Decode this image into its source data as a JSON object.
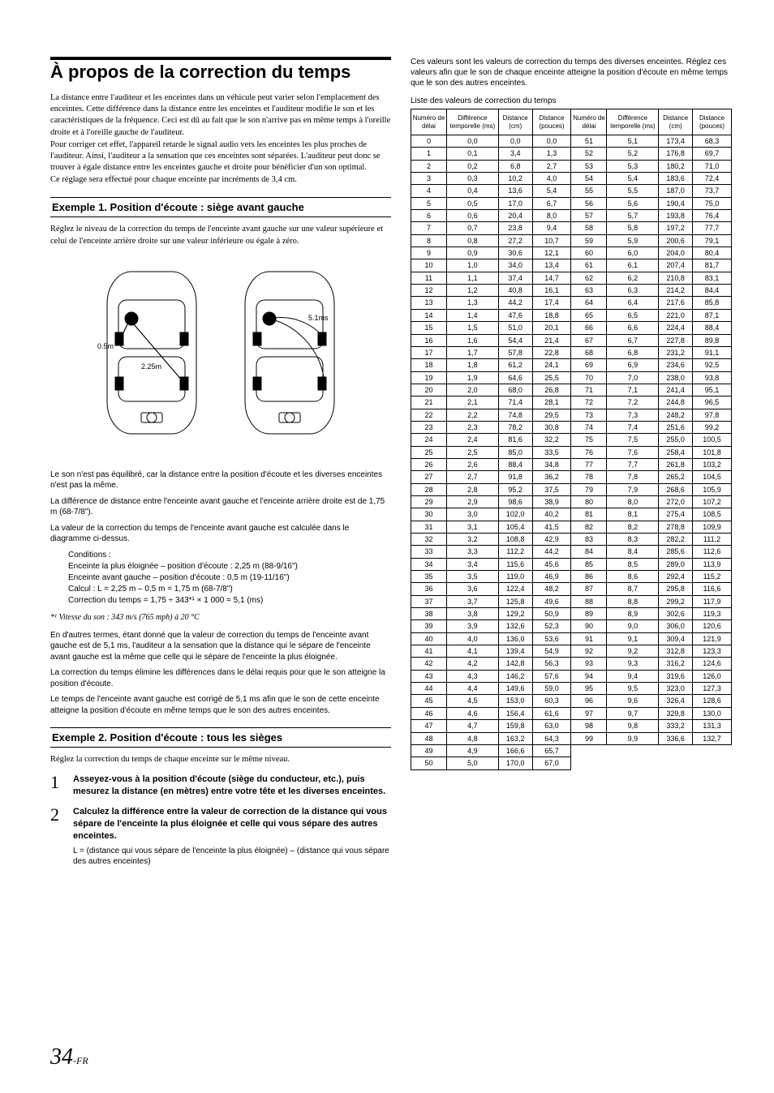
{
  "page": {
    "number": "34",
    "suffix": "-FR"
  },
  "title": "À propos de la correction du temps",
  "intro": [
    "La distance entre l'auditeur et les enceintes dans un véhicule peut varier selon l'emplacement des enceintes. Cette différence dans la distance entre les enceintes et l'auditeur modifie le son et les caractéristiques de la fréquence. Ceci est dû au fait que le son n'arrive pas en même temps à l'oreille droite et à l'oreille gauche de l'auditeur.",
    "Pour corriger cet effet, l'appareil retarde le signal audio vers les enceintes les plus proches de l'auditeur. Ainsi, l'auditeur a la sensation que ces enceintes sont séparées. L'auditeur peut donc se trouver à égale distance entre les enceintes gauche et droite pour bénéficier d'un son optimal.",
    "Ce réglage sera effectué pour chaque enceinte par incréments de 3,4 cm."
  ],
  "example1": {
    "heading": "Exemple 1. Position d'écoute : siège avant gauche",
    "intro": "Réglez le niveau de la correction du temps de l'enceinte avant gauche sur une valeur supérieure et celui de l'enceinte arrière droite sur une valeur inférieure ou égale à zéro.",
    "labels": {
      "d1": "0.5m",
      "d2": "2.25m",
      "t": "5.1ms"
    },
    "p1": "Le son n'est pas équilibré, car la distance entre la position d'écoute et les diverses enceintes n'est pas la même.",
    "p2": "La différence de distance entre l'enceinte avant gauche et l'enceinte arrière droite est de 1,75 m (68-7/8\").",
    "p3": "La valeur de la correction du temps de l'enceinte avant gauche est calculée dans le diagramme ci-dessus.",
    "conditions_label": "Conditions :",
    "conditions": [
      "Enceinte la plus éloignée – position d'écoute : 2,25 m (88-9/16\")",
      "Enceinte avant gauche – position d'écoute : 0,5 m (19-11/16\")",
      "Calcul : L = 2,25 m – 0,5 m = 1,75 m (68-7/8\")",
      "Correction du temps = 1,75 ÷ 343*¹ × 1 000 = 5,1 (ms)"
    ],
    "footnote": "*¹ Vitesse du son : 343 m/s (765 mph) à 20 °C",
    "p4": "En d'autres termes, étant donné que la valeur de correction du temps de l'enceinte avant gauche est de 5,1 ms, l'auditeur a la sensation que la distance qui le sépare de l'enceinte avant gauche est la même que celle qui le sépare de l'enceinte la plus éloignée.",
    "p5": "La correction du temps élimine les différences dans le délai requis pour que le son atteigne la position d'écoute.",
    "p6": "Le temps de l'enceinte avant gauche est corrigé de 5,1 ms afin que le son de cette enceinte atteigne la position d'écoute en même temps que le son des autres enceintes."
  },
  "example2": {
    "heading": "Exemple 2. Position d'écoute : tous les sièges",
    "intro": "Réglez la correction du temps de chaque enceinte sur le même niveau.",
    "steps": [
      {
        "n": "1",
        "text": "Asseyez-vous à la position d'écoute (siège du conducteur, etc.), puis mesurez la distance (en mètres) entre votre tête et les diverses enceintes."
      },
      {
        "n": "2",
        "text": "Calculez la différence entre la valeur de correction de la distance qui vous sépare de l'enceinte la plus éloignée et celle qui vous sépare des autres enceintes.",
        "sub": "L = (distance qui vous sépare de l'enceinte la plus éloignée) – (distance qui vous sépare des autres enceintes)"
      }
    ]
  },
  "right": {
    "intro": "Ces valeurs sont les valeurs de correction du temps des diverses enceintes. Réglez ces valeurs afin que le son de chaque enceinte atteigne la position d'écoute en même temps que le son des autres enceintes.",
    "caption": "Liste des valeurs de correction du temps",
    "headers": [
      "Numéro de délai",
      "Différence temporelle (ms)",
      "Distance (cm)",
      "Distance (pouces)",
      "Numéro de délai",
      "Différence temporelle (ms)",
      "Distance (cm)",
      "Distance (pouces)"
    ],
    "rows": [
      [
        "0",
        "0,0",
        "0,0",
        "0,0",
        "51",
        "5,1",
        "173,4",
        "68,3"
      ],
      [
        "1",
        "0,1",
        "3,4",
        "1,3",
        "52",
        "5,2",
        "176,8",
        "69,7"
      ],
      [
        "2",
        "0,2",
        "6,8",
        "2,7",
        "53",
        "5,3",
        "180,2",
        "71,0"
      ],
      [
        "3",
        "0,3",
        "10,2",
        "4,0",
        "54",
        "5,4",
        "183,6",
        "72,4"
      ],
      [
        "4",
        "0,4",
        "13,6",
        "5,4",
        "55",
        "5,5",
        "187,0",
        "73,7"
      ],
      [
        "5",
        "0,5",
        "17,0",
        "6,7",
        "56",
        "5,6",
        "190,4",
        "75,0"
      ],
      [
        "6",
        "0,6",
        "20,4",
        "8,0",
        "57",
        "5,7",
        "193,8",
        "76,4"
      ],
      [
        "7",
        "0,7",
        "23,8",
        "9,4",
        "58",
        "5,8",
        "197,2",
        "77,7"
      ],
      [
        "8",
        "0,8",
        "27,2",
        "10,7",
        "59",
        "5,9",
        "200,6",
        "79,1"
      ],
      [
        "9",
        "0,9",
        "30,6",
        "12,1",
        "60",
        "6,0",
        "204,0",
        "80,4"
      ],
      [
        "10",
        "1,0",
        "34,0",
        "13,4",
        "61",
        "6,1",
        "207,4",
        "81,7"
      ],
      [
        "11",
        "1,1",
        "37,4",
        "14,7",
        "62",
        "6,2",
        "210,8",
        "83,1"
      ],
      [
        "12",
        "1,2",
        "40,8",
        "16,1",
        "63",
        "6,3",
        "214,2",
        "84,4"
      ],
      [
        "13",
        "1,3",
        "44,2",
        "17,4",
        "64",
        "6,4",
        "217,6",
        "85,8"
      ],
      [
        "14",
        "1,4",
        "47,6",
        "18,8",
        "65",
        "6,5",
        "221,0",
        "87,1"
      ],
      [
        "15",
        "1,5",
        "51,0",
        "20,1",
        "66",
        "6,6",
        "224,4",
        "88,4"
      ],
      [
        "16",
        "1,6",
        "54,4",
        "21,4",
        "67",
        "6,7",
        "227,8",
        "89,8"
      ],
      [
        "17",
        "1,7",
        "57,8",
        "22,8",
        "68",
        "6,8",
        "231,2",
        "91,1"
      ],
      [
        "18",
        "1,8",
        "61,2",
        "24,1",
        "69",
        "6,9",
        "234,6",
        "92,5"
      ],
      [
        "19",
        "1,9",
        "64,6",
        "25,5",
        "70",
        "7,0",
        "238,0",
        "93,8"
      ],
      [
        "20",
        "2,0",
        "68,0",
        "26,8",
        "71",
        "7,1",
        "241,4",
        "95,1"
      ],
      [
        "21",
        "2,1",
        "71,4",
        "28,1",
        "72",
        "7,2",
        "244,8",
        "96,5"
      ],
      [
        "22",
        "2,2",
        "74,8",
        "29,5",
        "73",
        "7,3",
        "248,2",
        "97,8"
      ],
      [
        "23",
        "2,3",
        "78,2",
        "30,8",
        "74",
        "7,4",
        "251,6",
        "99,2"
      ],
      [
        "24",
        "2,4",
        "81,6",
        "32,2",
        "75",
        "7,5",
        "255,0",
        "100,5"
      ],
      [
        "25",
        "2,5",
        "85,0",
        "33,5",
        "76",
        "7,6",
        "258,4",
        "101,8"
      ],
      [
        "26",
        "2,6",
        "88,4",
        "34,8",
        "77",
        "7,7",
        "261,8",
        "103,2"
      ],
      [
        "27",
        "2,7",
        "91,8",
        "36,2",
        "78",
        "7,8",
        "265,2",
        "104,5"
      ],
      [
        "28",
        "2,8",
        "95,2",
        "37,5",
        "79",
        "7,9",
        "268,6",
        "105,9"
      ],
      [
        "29",
        "2,9",
        "98,6",
        "38,9",
        "80",
        "8,0",
        "272,0",
        "107,2"
      ],
      [
        "30",
        "3,0",
        "102,0",
        "40,2",
        "81",
        "8,1",
        "275,4",
        "108,5"
      ],
      [
        "31",
        "3,1",
        "105,4",
        "41,5",
        "82",
        "8,2",
        "278,8",
        "109,9"
      ],
      [
        "32",
        "3,2",
        "108,8",
        "42,9",
        "83",
        "8,3",
        "282,2",
        "111,2"
      ],
      [
        "33",
        "3,3",
        "112,2",
        "44,2",
        "84",
        "8,4",
        "285,6",
        "112,6"
      ],
      [
        "34",
        "3,4",
        "115,6",
        "45,6",
        "85",
        "8,5",
        "289,0",
        "113,9"
      ],
      [
        "35",
        "3,5",
        "119,0",
        "46,9",
        "86",
        "8,6",
        "292,4",
        "115,2"
      ],
      [
        "36",
        "3,6",
        "122,4",
        "48,2",
        "87",
        "8,7",
        "295,8",
        "116,6"
      ],
      [
        "37",
        "3,7",
        "125,8",
        "49,6",
        "88",
        "8,8",
        "299,2",
        "117,9"
      ],
      [
        "38",
        "3,8",
        "129,2",
        "50,9",
        "89",
        "8,9",
        "302,6",
        "119,3"
      ],
      [
        "39",
        "3,9",
        "132,6",
        "52,3",
        "90",
        "9,0",
        "306,0",
        "120,6"
      ],
      [
        "40",
        "4,0",
        "136,0",
        "53,6",
        "91",
        "9,1",
        "309,4",
        "121,9"
      ],
      [
        "41",
        "4,1",
        "139,4",
        "54,9",
        "92",
        "9,2",
        "312,8",
        "123,3"
      ],
      [
        "42",
        "4,2",
        "142,8",
        "56,3",
        "93",
        "9,3",
        "316,2",
        "124,6"
      ],
      [
        "43",
        "4,3",
        "146,2",
        "57,6",
        "94",
        "9,4",
        "319,6",
        "126,0"
      ],
      [
        "44",
        "4,4",
        "149,6",
        "59,0",
        "95",
        "9,5",
        "323,0",
        "127,3"
      ],
      [
        "45",
        "4,5",
        "153,0",
        "60,3",
        "96",
        "9,6",
        "326,4",
        "128,6"
      ],
      [
        "46",
        "4,6",
        "156,4",
        "61,6",
        "97",
        "9,7",
        "329,8",
        "130,0"
      ],
      [
        "47",
        "4,7",
        "159,8",
        "63,0",
        "98",
        "9,8",
        "333,2",
        "131,3"
      ],
      [
        "48",
        "4,8",
        "163,2",
        "64,3",
        "99",
        "9,9",
        "336,6",
        "132,7"
      ],
      [
        "49",
        "4,9",
        "166,6",
        "65,7",
        "",
        "",
        "",
        ""
      ],
      [
        "50",
        "5,0",
        "170,0",
        "67,0",
        "",
        "",
        "",
        ""
      ]
    ]
  },
  "colors": {
    "text": "#000000",
    "bg": "#ffffff",
    "rule": "#000000"
  }
}
